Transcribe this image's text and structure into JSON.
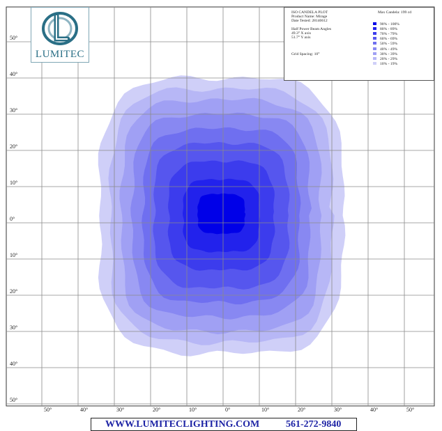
{
  "chart_data": {
    "type": "heatmap",
    "plot_kind": "iso-candela contour plot",
    "x_unit": "degrees",
    "y_unit": "degrees",
    "xlim": [
      -50,
      50
    ],
    "ylim": [
      -50,
      50
    ],
    "grid": true,
    "grid_spacing_deg": 10,
    "x_tick_labels": [
      "50°",
      "40°",
      "30°",
      "20°",
      "10°",
      "0°",
      "10°",
      "20°",
      "30°",
      "40°",
      "50°"
    ],
    "y_tick_labels": [
      "50°",
      "40°",
      "30°",
      "20°",
      "10°",
      "0°",
      "10°",
      "20°",
      "30°",
      "40°",
      "50°"
    ],
    "legend_placement": "top-right",
    "contours": [
      {
        "label": "10% - 19%",
        "color": "#cfcff8",
        "x_range": [
          -34,
          33
        ],
        "y_range": [
          -36,
          40
        ]
      },
      {
        "label": "20% - 29%",
        "color": "#b7b7f6",
        "x_range": [
          -31,
          30
        ],
        "y_range": [
          -33,
          37
        ]
      },
      {
        "label": "30% - 39%",
        "color": "#a0a0f4",
        "x_range": [
          -28,
          27
        ],
        "y_range": [
          -30,
          34
        ]
      },
      {
        "label": "40% - 49%",
        "color": "#8888f2",
        "x_range": [
          -25,
          24
        ],
        "y_range": [
          -26,
          30
        ]
      },
      {
        "label": "50% - 59%",
        "color": "#6f6ff0",
        "x_range": [
          -22,
          21
        ],
        "y_range": [
          -22,
          26
        ]
      },
      {
        "label": "60% - 69%",
        "color": "#5656ee",
        "x_range": [
          -19,
          18
        ],
        "y_range": [
          -18,
          22
        ]
      },
      {
        "label": "70% - 79%",
        "color": "#3c3ced",
        "x_range": [
          -15,
          14
        ],
        "y_range": [
          -13,
          17
        ]
      },
      {
        "label": "80% - 89%",
        "color": "#2222ec",
        "x_range": [
          -11,
          10
        ],
        "y_range": [
          -8,
          12
        ]
      },
      {
        "label": "90% - 100%",
        "color": "#0000e8",
        "x_range": [
          -7,
          6
        ],
        "y_range": [
          -3,
          8
        ]
      }
    ]
  },
  "logo": {
    "text": "LUMITEC",
    "color": "#2a6f86"
  },
  "legend": {
    "title": "ISO CANDELA PLOT",
    "product": "Product Name: Mirage",
    "date": "Date Tested: 28140612",
    "beam_heading": "Half Power Beam Angles",
    "x_axis": "49.3° X axis",
    "y_axis": "51.7° Y axis",
    "grid_spacing": "Grid Spacing: 10°",
    "max_candela": "Max Candela: 199 cd"
  },
  "footer": {
    "url": "WWW.LUMITECLIGHTING.COM",
    "phone": "561-272-9840",
    "text_color": "#1e24a5"
  }
}
